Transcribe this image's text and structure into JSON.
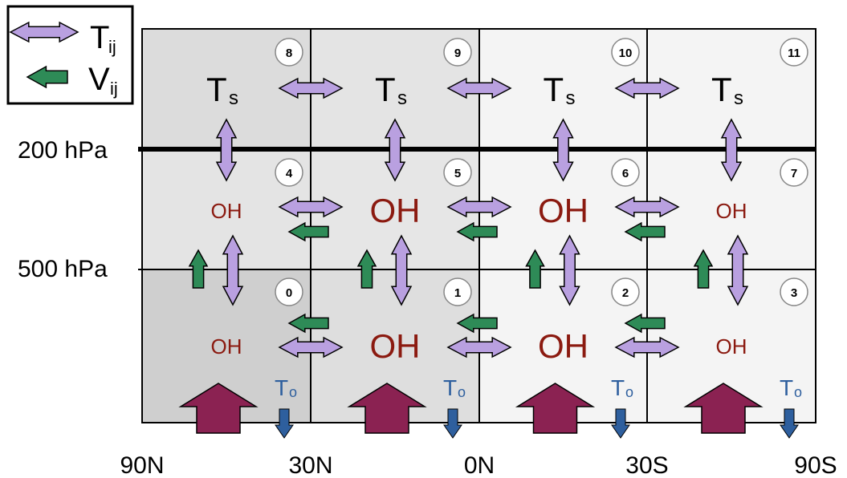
{
  "legend": {
    "transport_label": "T",
    "transport_sub": "ij",
    "transport_color": "#b9a0e0",
    "mixing_label": "V",
    "mixing_sub": "ij",
    "mixing_color": "#2e8b57"
  },
  "pressure_levels": [
    "200 hPa",
    "500 hPa"
  ],
  "latitudes": [
    "90N",
    "30N",
    "0N",
    "30S",
    "90S"
  ],
  "upper_boxes": [
    {
      "id": "8",
      "label": "T",
      "sub": "s"
    },
    {
      "id": "9",
      "label": "T",
      "sub": "s"
    },
    {
      "id": "10",
      "label": "T",
      "sub": "s"
    },
    {
      "id": "11",
      "label": "T",
      "sub": "s"
    }
  ],
  "middle_boxes": [
    {
      "id": "4",
      "label": "OH",
      "large": false
    },
    {
      "id": "5",
      "label": "OH",
      "large": true
    },
    {
      "id": "6",
      "label": "OH",
      "large": true
    },
    {
      "id": "7",
      "label": "OH",
      "large": false
    }
  ],
  "lower_boxes": [
    {
      "id": "0",
      "label": "OH",
      "large": false
    },
    {
      "id": "1",
      "label": "OH",
      "large": true
    },
    {
      "id": "2",
      "label": "OH",
      "large": true
    },
    {
      "id": "3",
      "label": "OH",
      "large": false
    }
  ],
  "surface": {
    "label": "T",
    "sub": "o"
  },
  "colors": {
    "oh_text": "#8b1a10",
    "emission_arrow": "#8b2252",
    "sink_arrow": "#2e5f9e",
    "transport_arrow": "#b9a0e0",
    "mixing_arrow": "#2e8b57",
    "col_shade_lower": [
      "#cfcfcf",
      "#dedede",
      "#f4f4f4",
      "#f4f4f4"
    ],
    "col_shade_mid": [
      "#e4e4e4",
      "#e6e6e6",
      "#f4f4f4",
      "#f4f4f4"
    ],
    "col_shade_upper": [
      "#dcdcdc",
      "#e4e4e4",
      "#f4f4f4",
      "#f4f4f4"
    ]
  }
}
